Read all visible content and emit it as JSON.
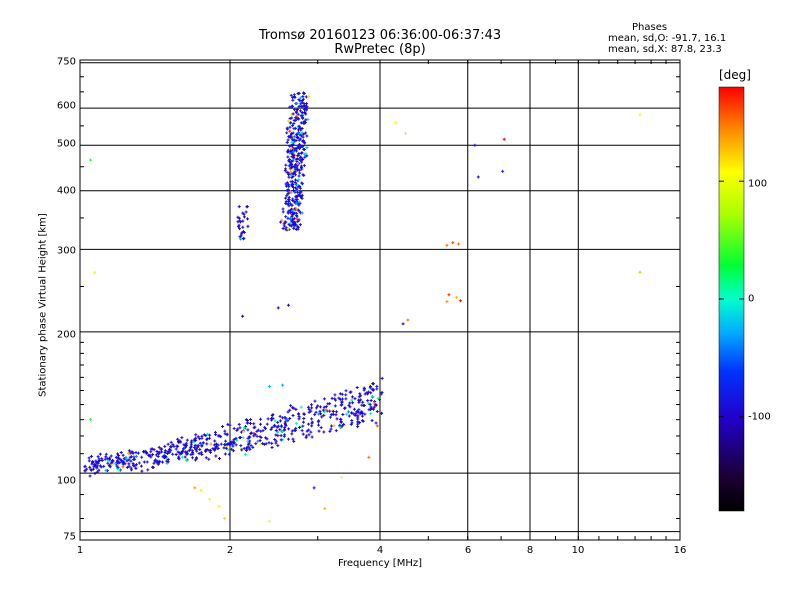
{
  "title": {
    "line1": "Tromsø 20160123 06:36:00-06:37:43",
    "line2": "RwPretec (8p)"
  },
  "phase_box": {
    "heading": "Phases",
    "o_line": "mean, sd,O: -91.7, 16.1",
    "x_line": "mean, sd,X:  87.8, 23.3"
  },
  "colorbar": {
    "label": "[deg]",
    "ticks": [
      "100",
      "0",
      "-100"
    ]
  },
  "chart_data": {
    "type": "scatter",
    "title": "Tromsø 20160123 06:36:00-06:37:43",
    "subtitle": "RwPretec (8p)",
    "xlabel": "Frequency [MHz]",
    "ylabel": "Stationary phase Virtual Height [km]",
    "xscale": "log",
    "yscale": "log",
    "xlim": [
      1,
      16
    ],
    "ylim": [
      72,
      760
    ],
    "x_ticks": [
      "1",
      "2",
      "4",
      "6",
      "8",
      "10",
      "16"
    ],
    "y_ticks": [
      "750",
      "600",
      "500",
      "400",
      "300",
      "200",
      "100",
      "75"
    ],
    "grid": true,
    "color_scale": {
      "label": "[deg]",
      "min": -180,
      "max": 180,
      "ticks": [
        100,
        0,
        -100
      ]
    },
    "clusters": [
      {
        "name": "low-layer trace",
        "x_range": [
          1.02,
          4.05
        ],
        "y_start": [
          101,
          107
        ],
        "y_end": [
          130,
          158
        ],
        "count": 700,
        "phase_mean": -92,
        "spread": 0.055
      },
      {
        "name": "upper trace",
        "x_range": [
          2.55,
          2.9
        ],
        "y_start": [
          330,
          380
        ],
        "y_end": [
          560,
          650
        ],
        "count": 420,
        "phase_mean": -90,
        "spread": 0.05
      },
      {
        "name": "upper trace left",
        "x_range": [
          2.04,
          2.18
        ],
        "y_start": [
          315,
          340
        ],
        "y_end": [
          340,
          370
        ],
        "count": 30,
        "phase_mean": -95,
        "spread": 0.03
      }
    ],
    "points": [
      {
        "x": 1.05,
        "y": 465,
        "phase": 40
      },
      {
        "x": 1.07,
        "y": 268,
        "phase": 100
      },
      {
        "x": 1.05,
        "y": 130,
        "phase": 40
      },
      {
        "x": 2.12,
        "y": 216,
        "phase": -100
      },
      {
        "x": 2.5,
        "y": 225,
        "phase": -95
      },
      {
        "x": 2.62,
        "y": 228,
        "phase": -100
      },
      {
        "x": 2.4,
        "y": 153,
        "phase": -20
      },
      {
        "x": 2.55,
        "y": 154,
        "phase": -30
      },
      {
        "x": 1.75,
        "y": 92,
        "phase": 90
      },
      {
        "x": 1.82,
        "y": 88,
        "phase": 100
      },
      {
        "x": 1.9,
        "y": 85,
        "phase": 95
      },
      {
        "x": 1.95,
        "y": 80,
        "phase": 120
      },
      {
        "x": 1.7,
        "y": 93,
        "phase": 140
      },
      {
        "x": 2.4,
        "y": 79,
        "phase": 110
      },
      {
        "x": 2.95,
        "y": 93,
        "phase": -90
      },
      {
        "x": 3.35,
        "y": 98,
        "phase": 110
      },
      {
        "x": 3.1,
        "y": 84,
        "phase": 130
      },
      {
        "x": 3.8,
        "y": 108,
        "phase": 150
      },
      {
        "x": 3.95,
        "y": 126,
        "phase": 160
      },
      {
        "x": 4.3,
        "y": 560,
        "phase": 110
      },
      {
        "x": 4.5,
        "y": 530,
        "phase": 115
      },
      {
        "x": 4.55,
        "y": 212,
        "phase": 150
      },
      {
        "x": 4.45,
        "y": 208,
        "phase": -110
      },
      {
        "x": 5.45,
        "y": 306,
        "phase": 150
      },
      {
        "x": 5.6,
        "y": 310,
        "phase": 160
      },
      {
        "x": 5.75,
        "y": 308,
        "phase": 150
      },
      {
        "x": 5.5,
        "y": 240,
        "phase": 170
      },
      {
        "x": 5.7,
        "y": 237,
        "phase": 130
      },
      {
        "x": 5.8,
        "y": 233,
        "phase": 175
      },
      {
        "x": 5.45,
        "y": 232,
        "phase": 140
      },
      {
        "x": 6.2,
        "y": 500,
        "phase": -100
      },
      {
        "x": 6.3,
        "y": 428,
        "phase": -100
      },
      {
        "x": 7.1,
        "y": 515,
        "phase": 180
      },
      {
        "x": 7.05,
        "y": 440,
        "phase": -60
      },
      {
        "x": 13.3,
        "y": 580,
        "phase": 110
      },
      {
        "x": 13.3,
        "y": 268,
        "phase": 130
      }
    ]
  }
}
